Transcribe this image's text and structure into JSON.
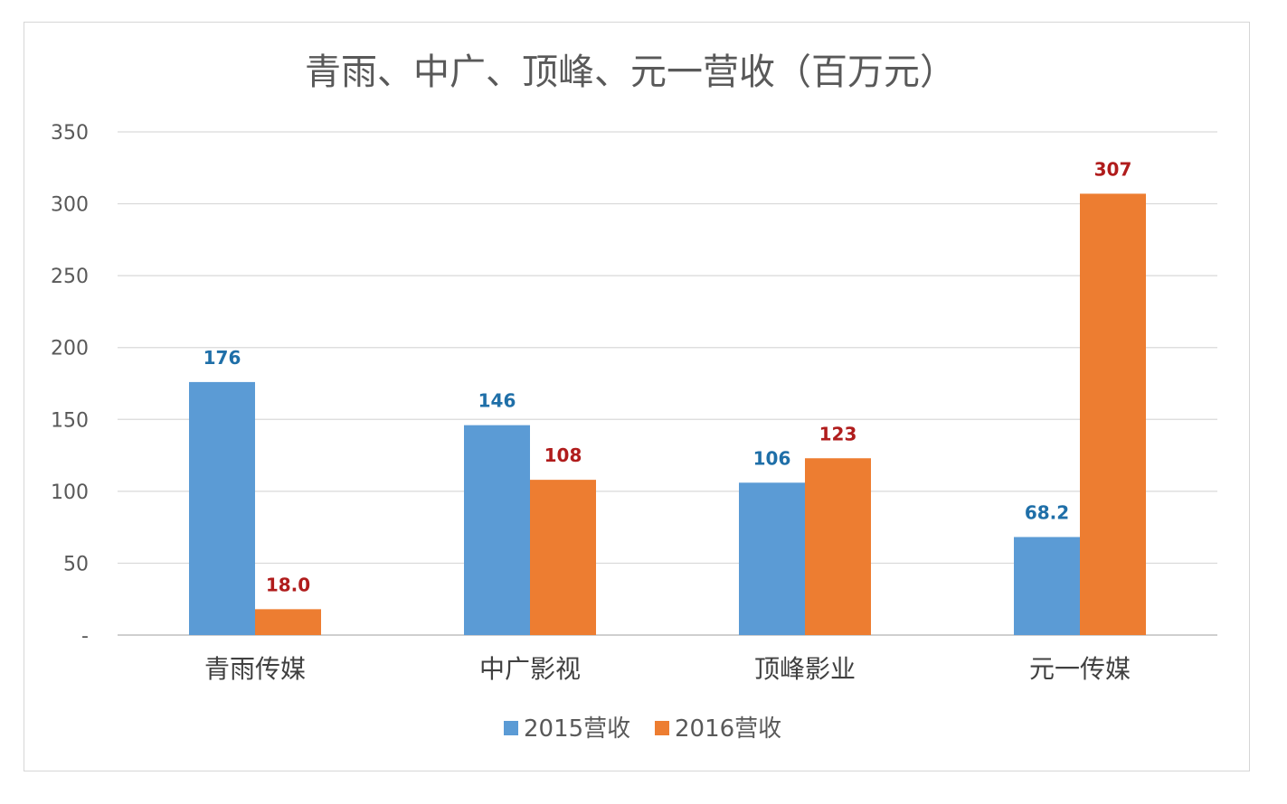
{
  "chart_data": {
    "type": "bar",
    "title": "青雨、中广、顶峰、元一营收（百万元）",
    "categories": [
      "青雨传媒",
      "中广影视",
      "顶峰影业",
      "元一传媒"
    ],
    "series": [
      {
        "name": "2015营收",
        "values": [
          176,
          146,
          106,
          68.2
        ],
        "labels": [
          "176",
          "146",
          "106",
          "68.2"
        ],
        "color": "#5b9bd5",
        "label_color": "#1f6fa8"
      },
      {
        "name": "2016营收",
        "values": [
          18.0,
          108,
          123,
          307
        ],
        "labels": [
          "18.0",
          "108",
          "123",
          "307"
        ],
        "color": "#ed7d31",
        "label_color": "#b01c1c"
      }
    ],
    "yticks": [
      0,
      50,
      100,
      150,
      200,
      250,
      300,
      350
    ],
    "ytick_labels": [
      "-",
      "50",
      "100",
      "150",
      "200",
      "250",
      "300",
      "350"
    ],
    "ylim": [
      0,
      350
    ],
    "grid": true,
    "legend_position": "bottom"
  }
}
